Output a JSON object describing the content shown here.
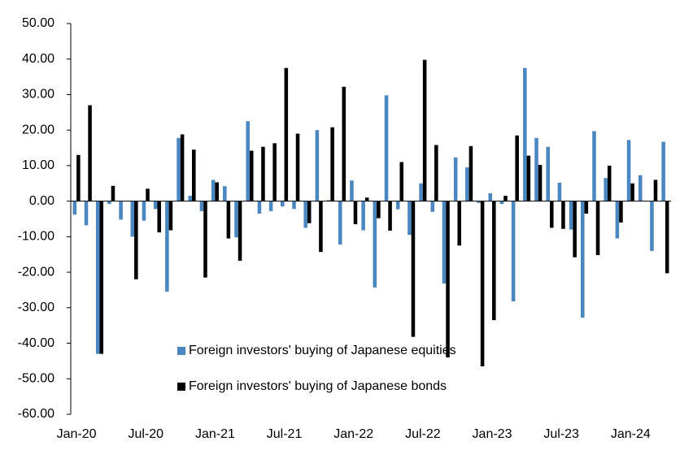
{
  "chart_data": {
    "type": "bar",
    "categories": [
      "Jan-20",
      null,
      null,
      null,
      null,
      null,
      "Jul-20",
      null,
      null,
      null,
      null,
      null,
      "Jan-21",
      null,
      null,
      null,
      null,
      null,
      "Jul-21",
      null,
      null,
      null,
      null,
      null,
      "Jan-22",
      null,
      null,
      null,
      null,
      null,
      "Jul-22",
      null,
      null,
      null,
      null,
      null,
      "Jan-23",
      null,
      null,
      null,
      null,
      null,
      "Jul-23",
      null,
      null,
      null,
      null,
      null,
      "Jan-24",
      null,
      null,
      null
    ],
    "series": [
      {
        "name": "Foreign investors' buying of Japanese equities",
        "color": "#4a86bf",
        "values": [
          -3.8,
          -6.8,
          -43,
          -0.8,
          -5.2,
          -10,
          -5.5,
          -2.2,
          -25.5,
          17.8,
          1.5,
          -2.8,
          6,
          4.2,
          -10.2,
          22.5,
          -3.5,
          -2.8,
          -1.5,
          -2.2,
          -7.5,
          20,
          0.3,
          -12.2,
          5.8,
          -8.2,
          -24.3,
          29.8,
          -2.3,
          -9.5,
          5,
          -3,
          -23.2,
          12.3,
          9.5,
          -0.5,
          2.2,
          -0.8,
          -28.2,
          37.5,
          17.8,
          15.3,
          5.2,
          -8,
          -32.8,
          19.7,
          6.5,
          -10.5,
          17.2,
          7.3,
          -14,
          16.7
        ]
      },
      {
        "name": "Foreign investors' buying of Japanese bonds",
        "color": "#000000",
        "values": [
          13,
          27,
          -43,
          4.3,
          0,
          -22,
          3.5,
          -8.8,
          -8.2,
          18.8,
          14.5,
          -21.5,
          5.3,
          -10.5,
          -16.8,
          14.2,
          15.3,
          16.3,
          37.5,
          19,
          -6.2,
          -14.3,
          20.8,
          32.2,
          -6.5,
          1,
          -4.8,
          -8.3,
          11,
          -38.2,
          39.8,
          15.8,
          -44,
          -12.5,
          15.5,
          -46.5,
          -33.5,
          1.5,
          18.5,
          12.8,
          10.2,
          -7.5,
          -7.8,
          -15.8,
          -3.5,
          -15.2,
          10,
          -6,
          5,
          0,
          6,
          -20.3
        ]
      }
    ],
    "ylim": [
      -60,
      50
    ],
    "yticks": [
      {
        "value": -60,
        "label": "-60.00"
      },
      {
        "value": -50,
        "label": "-50.00"
      },
      {
        "value": -40,
        "label": "-40.00"
      },
      {
        "value": -30,
        "label": "-30.00"
      },
      {
        "value": -20,
        "label": "-20.00"
      },
      {
        "value": -10,
        "label": "-10.00"
      },
      {
        "value": 0,
        "label": "0.00"
      },
      {
        "value": 10,
        "label": "10.00"
      },
      {
        "value": 20,
        "label": "20.00"
      },
      {
        "value": 30,
        "label": "30.00"
      },
      {
        "value": 40,
        "label": "40.00"
      },
      {
        "value": 50,
        "label": "50.00"
      }
    ]
  }
}
